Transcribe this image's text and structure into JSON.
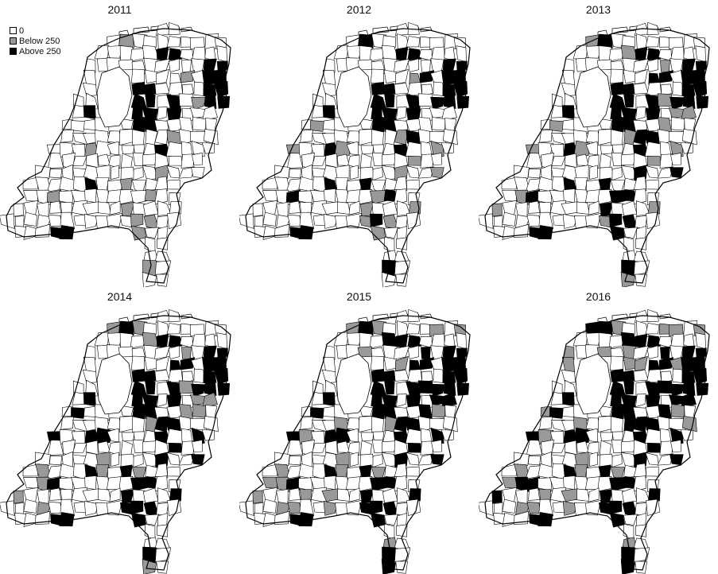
{
  "colors": {
    "zero": "#ffffff",
    "below": "#999999",
    "above": "#000000",
    "border": "#000000"
  },
  "legend": {
    "items": [
      {
        "label": "0",
        "category": "zero"
      },
      {
        "label": "Below 250",
        "category": "below"
      },
      {
        "label": "Above 250",
        "category": "above"
      }
    ]
  },
  "panels": [
    {
      "year": "2011"
    },
    {
      "year": "2012"
    },
    {
      "year": "2013"
    },
    {
      "year": "2014"
    },
    {
      "year": "2015"
    },
    {
      "year": "2016"
    }
  ]
}
